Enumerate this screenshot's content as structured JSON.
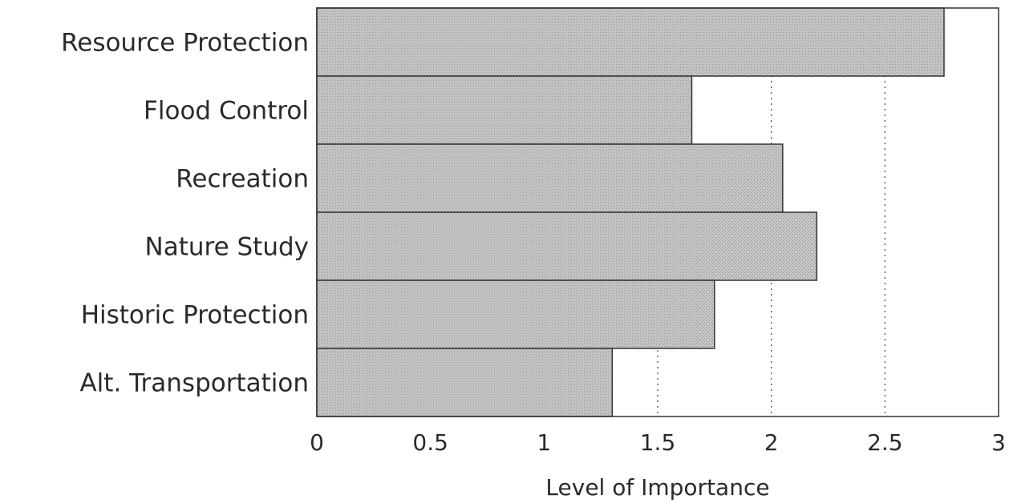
{
  "chart_data": {
    "type": "bar",
    "orientation": "horizontal",
    "categories": [
      "Resource Protection",
      "Flood Control",
      "Recreation",
      "Nature Study",
      "Historic Protection",
      "Alt. Transportation"
    ],
    "values": [
      2.76,
      1.65,
      2.05,
      2.2,
      1.75,
      1.3
    ],
    "xlabel": "Level of Importance",
    "ylabel": "",
    "title": "",
    "xlim": [
      0,
      3
    ],
    "x_ticks": [
      "0",
      "0.5",
      "1",
      "1.5",
      "2",
      "2.5",
      "3"
    ],
    "grid": "dotted vertical lines",
    "bar_color": "#b9b9b9",
    "bar_edge_color": "#333333"
  }
}
